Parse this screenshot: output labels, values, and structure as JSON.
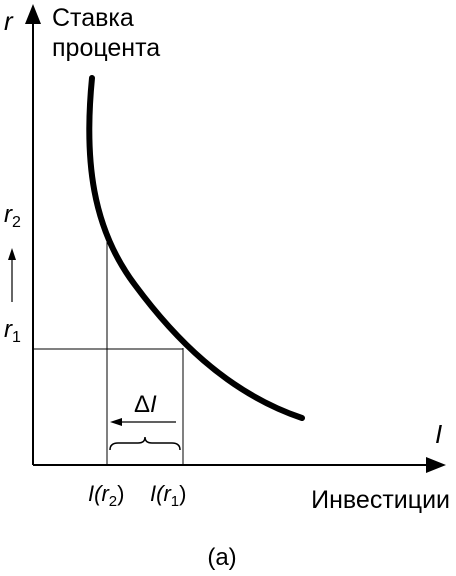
{
  "y_axis": {
    "symbol": "r",
    "title_lines": [
      "Ставка",
      "процента"
    ],
    "marks": [
      {
        "main": "r",
        "sub": "2"
      },
      {
        "main": "r",
        "sub": "1"
      }
    ]
  },
  "x_axis": {
    "symbol": "I",
    "title": "Инвестиции",
    "marks": [
      {
        "pre": "I(",
        "main": "r",
        "sub": "2",
        "post": ")"
      },
      {
        "pre": "I(",
        "main": "r",
        "sub": "1",
        "post": ")"
      }
    ]
  },
  "delta_label": {
    "symbol": "Δ",
    "var": "I"
  },
  "caption": "(a)"
}
